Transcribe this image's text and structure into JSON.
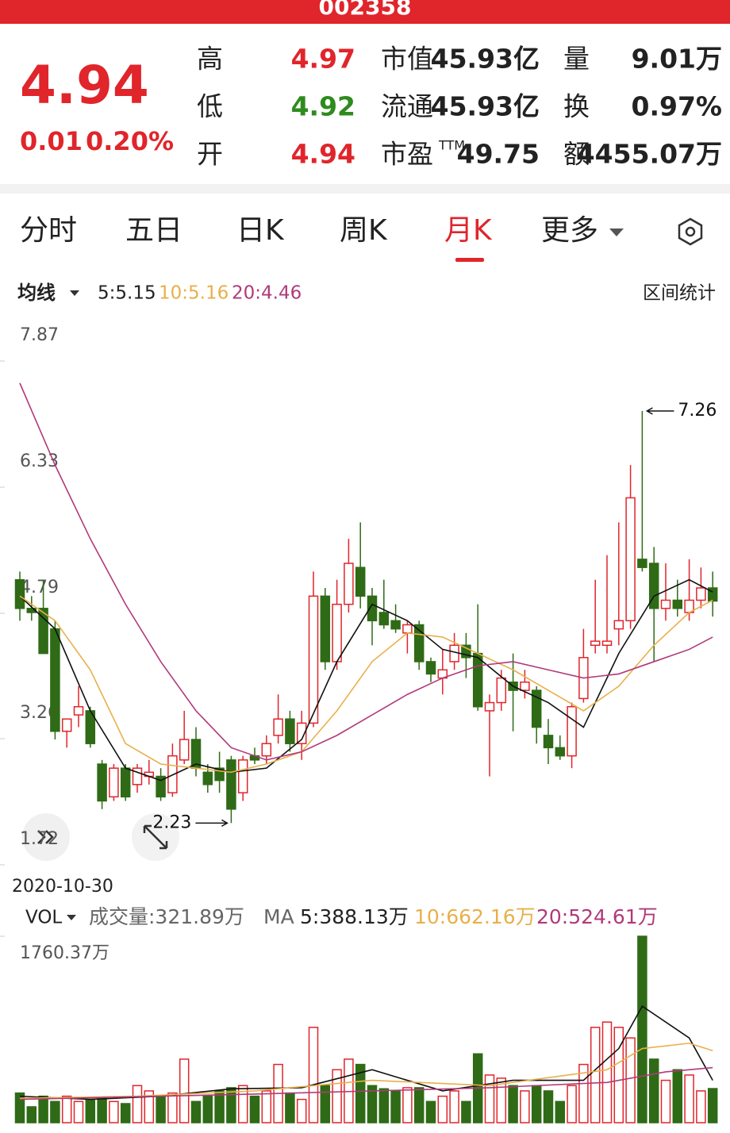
{
  "header": {
    "code": "002358",
    "price": "4.94",
    "change": "0.01",
    "change_pct": "0.20%",
    "rows": [
      {
        "l1": "高",
        "v1": "4.97",
        "l2": "市值",
        "v2": "45.93亿",
        "l3": "量",
        "v3": "9.01万"
      },
      {
        "l1": "低",
        "v1": "4.92",
        "l2": "流通",
        "v2": "45.93亿",
        "l3": "换",
        "v3": "0.97%"
      },
      {
        "l1": "开",
        "v1": "4.94",
        "l2": "市盈",
        "l2_sup": "TTM",
        "v2": "49.75",
        "l3": "额",
        "v3": "4455.07万"
      }
    ]
  },
  "tabs": [
    "分时",
    "五日",
    "日K",
    "周K",
    "月K",
    "更多"
  ],
  "ma_bar": {
    "label": "均线",
    "items": [
      "5:5.15",
      "10:5.16",
      "20:4.46"
    ],
    "right": "区间统计"
  },
  "vol_bar": {
    "label": "VOL",
    "volume": "成交量:321.89万",
    "ma": "MA",
    "items": [
      "5:388.13万",
      "10:662.16万",
      "20:524.61万"
    ]
  },
  "chart_data": [
    {
      "type": "candlestick",
      "start_date": "2020-10-30",
      "ylim": [
        1.72,
        7.87
      ],
      "yticks": [
        7.87,
        6.33,
        4.79,
        3.26,
        1.72
      ],
      "up_color": "#e0252b",
      "down_color": "#2f6b16",
      "open": [
        5.2,
        4.85,
        4.85,
        4.6,
        3.35,
        3.55,
        3.6,
        2.95,
        2.55,
        2.9,
        2.7,
        2.8,
        2.8,
        2.6,
        3.0,
        3.25,
        2.85,
        2.9,
        3.0,
        2.6,
        3.05,
        3.05,
        3.3,
        3.5,
        3.2,
        3.45,
        5.0,
        4.2,
        4.9,
        5.35,
        5.0,
        4.8,
        4.7,
        4.55,
        4.65,
        4.2,
        4.0,
        4.2,
        4.4,
        4.3,
        3.6,
        3.7,
        3.95,
        3.85,
        3.85,
        3.3,
        3.15,
        3.05,
        3.75,
        4.4,
        4.4,
        4.6,
        4.7,
        5.45,
        5.4,
        4.85,
        4.95,
        4.8,
        4.95,
        5.1
      ],
      "high": [
        5.3,
        5.0,
        5.2,
        4.7,
        3.5,
        3.9,
        3.65,
        3.0,
        2.95,
        2.95,
        2.95,
        3.0,
        2.9,
        3.2,
        3.6,
        3.4,
        2.95,
        3.1,
        3.05,
        3.05,
        3.15,
        3.3,
        3.8,
        3.6,
        3.6,
        5.3,
        5.1,
        5.2,
        5.7,
        5.9,
        5.1,
        5.2,
        4.9,
        4.7,
        4.7,
        4.25,
        4.35,
        4.55,
        4.55,
        4.9,
        3.8,
        4.1,
        4.3,
        4.1,
        3.9,
        3.5,
        3.3,
        3.7,
        4.6,
        5.2,
        5.5,
        5.9,
        6.6,
        7.26,
        5.6,
        5.4,
        5.2,
        5.45,
        5.35,
        5.3
      ],
      "low": [
        4.7,
        4.7,
        4.3,
        3.25,
        3.15,
        3.4,
        3.15,
        2.4,
        2.5,
        2.5,
        2.6,
        2.7,
        2.5,
        2.55,
        2.95,
        2.8,
        2.6,
        2.6,
        2.23,
        2.5,
        2.95,
        2.95,
        3.2,
        3.1,
        3.0,
        3.4,
        4.1,
        4.1,
        4.8,
        4.85,
        4.4,
        4.6,
        4.55,
        4.3,
        4.1,
        3.95,
        3.8,
        4.1,
        4.0,
        3.6,
        2.8,
        3.6,
        3.35,
        3.75,
        3.2,
        2.95,
        3.0,
        2.9,
        3.7,
        4.3,
        4.3,
        4.4,
        4.6,
        5.3,
        4.2,
        4.7,
        4.75,
        4.7,
        4.85,
        4.75
      ],
      "close": [
        4.85,
        4.8,
        4.3,
        3.35,
        3.5,
        3.65,
        3.2,
        2.5,
        2.9,
        2.55,
        2.9,
        2.85,
        2.55,
        3.05,
        3.25,
        2.9,
        2.7,
        2.75,
        2.4,
        3.0,
        3.0,
        3.2,
        3.5,
        3.2,
        3.45,
        5.0,
        4.2,
        4.9,
        5.4,
        5.0,
        4.7,
        4.65,
        4.6,
        4.65,
        4.2,
        4.05,
        4.1,
        4.4,
        4.25,
        3.65,
        3.7,
        4.0,
        3.85,
        3.95,
        3.4,
        3.15,
        3.05,
        3.65,
        4.25,
        4.45,
        4.45,
        4.7,
        6.2,
        5.35,
        4.85,
        4.95,
        4.85,
        4.95,
        5.1,
        4.94
      ],
      "series": [
        {
          "color": "#111111",
          "x": [
            0,
            3,
            6,
            9,
            12,
            15,
            18,
            21,
            24,
            27,
            30,
            33,
            36,
            39,
            42,
            45,
            48,
            51,
            54,
            57,
            59
          ],
          "values": [
            5.0,
            4.6,
            3.6,
            2.9,
            2.75,
            2.95,
            2.85,
            2.9,
            3.25,
            4.2,
            4.9,
            4.7,
            4.35,
            4.25,
            3.9,
            3.7,
            3.4,
            4.3,
            5.0,
            5.2,
            5.05
          ]
        },
        {
          "color": "#e8b04a",
          "x": [
            0,
            3,
            6,
            9,
            12,
            15,
            18,
            21,
            24,
            27,
            30,
            33,
            36,
            39,
            42,
            45,
            48,
            51,
            54,
            57,
            59
          ],
          "values": [
            5.0,
            4.7,
            4.1,
            3.2,
            2.95,
            2.9,
            2.85,
            2.95,
            3.1,
            3.6,
            4.2,
            4.55,
            4.5,
            4.3,
            4.1,
            3.85,
            3.6,
            3.9,
            4.4,
            4.8,
            4.95
          ]
        },
        {
          "color": "#b03a7a",
          "x": [
            0,
            3,
            6,
            9,
            12,
            15,
            18,
            21,
            24,
            27,
            30,
            33,
            36,
            39,
            42,
            45,
            48,
            51,
            54,
            57,
            59
          ],
          "values": [
            7.6,
            6.6,
            5.7,
            4.9,
            4.2,
            3.6,
            3.15,
            3.0,
            3.1,
            3.3,
            3.55,
            3.8,
            4.0,
            4.15,
            4.2,
            4.1,
            4.0,
            4.05,
            4.2,
            4.35,
            4.5
          ]
        }
      ],
      "annotations": [
        {
          "value": 7.26,
          "x": 53,
          "side": "right"
        },
        {
          "value": 2.23,
          "x": 18,
          "side": "left"
        }
      ]
    },
    {
      "type": "bar",
      "ylim": [
        0,
        1760.37
      ],
      "yticks": [
        {
          "value": 1760.37,
          "label": "1760.37万"
        }
      ],
      "values": [
        280,
        150,
        250,
        200,
        250,
        200,
        220,
        230,
        200,
        180,
        350,
        300,
        250,
        280,
        600,
        200,
        250,
        300,
        330,
        350,
        250,
        300,
        550,
        280,
        220,
        900,
        350,
        500,
        600,
        550,
        350,
        320,
        300,
        330,
        330,
        200,
        250,
        300,
        200,
        650,
        450,
        420,
        350,
        300,
        350,
        300,
        200,
        350,
        550,
        900,
        950,
        900,
        800,
        1760,
        600,
        400,
        500,
        450,
        300,
        321.89
      ],
      "series": [
        {
          "color": "#111111",
          "x": [
            0,
            6,
            12,
            18,
            24,
            30,
            36,
            42,
            48,
            51,
            53,
            57,
            59
          ],
          "values": [
            250,
            220,
            250,
            320,
            330,
            500,
            300,
            400,
            400,
            700,
            1100,
            800,
            400
          ]
        },
        {
          "color": "#e8b04a",
          "x": [
            0,
            10,
            20,
            30,
            40,
            50,
            53,
            57,
            59
          ],
          "values": [
            230,
            250,
            300,
            400,
            350,
            500,
            700,
            750,
            680
          ]
        },
        {
          "color": "#b03a7a",
          "x": [
            0,
            20,
            40,
            50,
            55,
            59
          ],
          "values": [
            220,
            270,
            330,
            380,
            480,
            520
          ]
        }
      ]
    }
  ]
}
